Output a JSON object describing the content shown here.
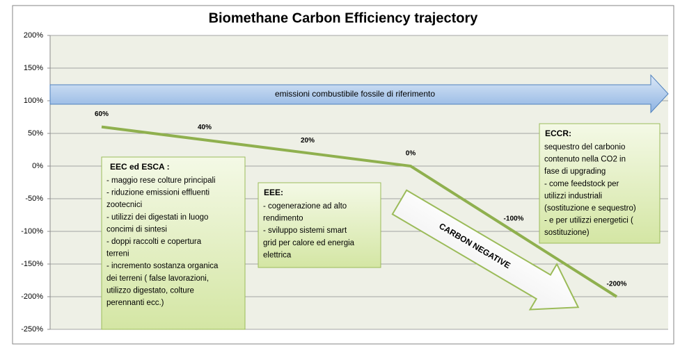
{
  "chart_data": {
    "type": "line",
    "title": "Biomethane Carbon Efficiency trajectory",
    "categories": [
      null,
      null,
      null,
      null,
      null,
      null
    ],
    "series": [
      {
        "color": "#8fb04e",
        "values": [
          60,
          40,
          20,
          0,
          -100,
          -200
        ],
        "value_labels": [
          "60%",
          "40%",
          "20%",
          "0%",
          "-100%",
          "-200%"
        ]
      }
    ],
    "ylim": [
      -250,
      200
    ],
    "yticks": [
      {
        "value": -250,
        "label": "-250%"
      },
      {
        "value": -200,
        "label": "-200%"
      },
      {
        "value": -150,
        "label": "-150%"
      },
      {
        "value": -100,
        "label": "-100%"
      },
      {
        "value": -50,
        "label": "-50%"
      },
      {
        "value": 0,
        "label": "0%"
      },
      {
        "value": 50,
        "label": "50%"
      },
      {
        "value": 100,
        "label": "100%"
      },
      {
        "value": 150,
        "label": "150%"
      },
      {
        "value": 200,
        "label": "200%"
      }
    ],
    "grid": true,
    "annotations": {
      "arrow_label": "emissioni combustibile fossile di riferimento",
      "carbon_negative": "CARBON  NEGATIVE",
      "boxes": [
        {
          "title": "EEC ed  ESCA :",
          "lines": [
            "- maggio rese colture principali",
            "- riduzione emissioni effluenti",
            "zootecnici",
            "- utilizzi dei digestati in luogo",
            "concimi di sintesi",
            "- doppi raccolti  e copertura",
            "terreni",
            "- incremento sostanza organica",
            "dei terreni ( false lavorazioni,",
            "utilizzo digestato, colture",
            "perennanti ecc.)"
          ]
        },
        {
          "title": "EEE:",
          "lines": [
            "- cogenerazione ad alto",
            "rendimento",
            "- sviluppo sistemi smart",
            "grid per calore ed energia",
            "elettrica"
          ]
        },
        {
          "title": "ECCR:",
          "lines": [
            "sequestro del carbonio",
            "contenuto nella CO2 in",
            "fase di upgrading",
            "-  come feedstock per",
            "utilizzi industriali",
            "(sostituzione e sequestro)",
            "-  e per utilizzi  energetici (",
            "sostituzione)"
          ]
        }
      ]
    }
  }
}
